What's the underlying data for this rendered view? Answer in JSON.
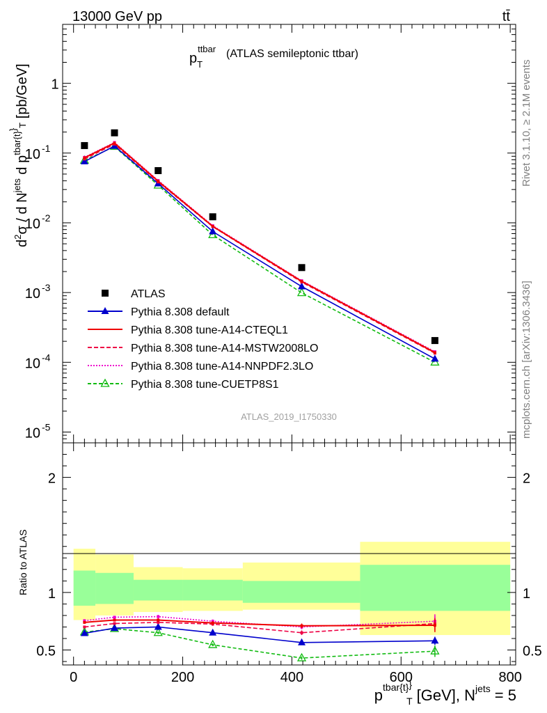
{
  "header": {
    "energy_label": "13000 GeV pp",
    "process_label": "tt̄"
  },
  "side_labels": {
    "rivet": "Rivet 3.1.10, ≥ 2.1M events",
    "mcplots": "mcplots.cern.ch [arXiv:1306.3436]"
  },
  "chart_data": {
    "type": "line",
    "title": "p_T^{ttbar} (ATLAS semileptonic ttbar)",
    "title_main": "p",
    "title_sub": "T",
    "title_sup": "ttbar",
    "title_rest": "(ATLAS semileptonic ttbar)",
    "analysis_id": "ATLAS_2019_I1750330",
    "xlabel": "p^{tbar{t}}_T [GeV], N^{jets} = 5",
    "x_unit_text": "[GeV], N",
    "x_sup_jets": "jets",
    "x_eq": "= 5",
    "ylabel": "d²σ / d N^{jets} d p^{tbar{t}}_T [pb/GeV]",
    "ratio_ylabel": "Ratio to ATLAS",
    "xlim": [
      -20,
      810
    ],
    "x_ticks": [
      0,
      200,
      400,
      600,
      800
    ],
    "x_tick_labels": [
      "0",
      "200",
      "400",
      "600",
      "800"
    ],
    "ylim": [
      7e-06,
      7.0
    ],
    "y_scale": "log",
    "y_tick_labels": [
      {
        "mant": "10",
        "exp": "-5",
        "value": 1e-05
      },
      {
        "mant": "10",
        "exp": "-4",
        "value": 0.0001
      },
      {
        "mant": "10",
        "exp": "-3",
        "value": 0.001
      },
      {
        "mant": "10",
        "exp": "-2",
        "value": 0.01
      },
      {
        "mant": "10",
        "exp": "-1",
        "value": 0.1
      },
      {
        "mant": "1",
        "exp": "",
        "value": 1
      }
    ],
    "ratio_ylim": [
      0.37,
      2.3
    ],
    "ratio_ticks": [
      0.5,
      1,
      2
    ],
    "ratio_tick_labels": [
      "0.5",
      "1",
      "2"
    ],
    "x": [
      20,
      75,
      155,
      255,
      418,
      662
    ],
    "bins": [
      [
        0,
        40
      ],
      [
        40,
        110
      ],
      [
        110,
        200
      ],
      [
        200,
        310
      ],
      [
        310,
        525
      ],
      [
        525,
        800
      ]
    ],
    "data": {
      "name": "ATLAS",
      "values": [
        0.128,
        0.195,
        0.056,
        0.0122,
        0.00228,
        0.000205
      ]
    },
    "band_inner": [
      [
        0.885,
        1.19
      ],
      [
        0.9,
        1.17
      ],
      [
        0.93,
        1.11
      ],
      [
        0.93,
        1.11
      ],
      [
        0.91,
        1.1
      ],
      [
        0.84,
        1.24
      ]
    ],
    "band_outer": [
      [
        0.76,
        1.38
      ],
      [
        0.8,
        1.33
      ],
      [
        0.83,
        1.22
      ],
      [
        0.84,
        1.21
      ],
      [
        0.85,
        1.26
      ],
      [
        0.63,
        1.44
      ]
    ],
    "series": [
      {
        "name": "Pythia 8.308 default",
        "color": "#0000cc",
        "dash": "",
        "marker": "triangle-filled",
        "values": [
          0.0755,
          0.126,
          0.0365,
          0.0075,
          0.00122,
          0.000112
        ],
        "ratio": [
          0.645,
          0.69,
          0.7,
          0.65,
          0.565,
          0.58
        ],
        "ratio_err": [
          0.01,
          0.01,
          0.012,
          0.012,
          0.018,
          0.035
        ]
      },
      {
        "name": "Pythia 8.308 tune-A14-CTEQL1",
        "color": "#ee0000",
        "dash": "",
        "marker": "none",
        "values": [
          0.0855,
          0.139,
          0.0395,
          0.0089,
          0.00145,
          0.000138
        ],
        "ratio": [
          0.74,
          0.76,
          0.76,
          0.735,
          0.71,
          0.715
        ],
        "ratio_err": [
          0.012,
          0.012,
          0.015,
          0.015,
          0.02,
          0.06
        ]
      },
      {
        "name": "Pythia 8.308 tune-A14-MSTW2008LO",
        "color": "#ee0044",
        "dash": "6,3",
        "marker": "none",
        "values": [
          0.082,
          0.134,
          0.0385,
          0.0088,
          0.00141,
          0.000135
        ],
        "ratio": [
          0.7,
          0.73,
          0.74,
          0.725,
          0.65,
          0.73
        ],
        "ratio_err": [
          0.012,
          0.012,
          0.015,
          0.015,
          0.02,
          0.06
        ]
      },
      {
        "name": "Pythia 8.308 tune-A14-NNPDF2.3LO",
        "color": "#ee00cc",
        "dash": "2,2",
        "marker": "none",
        "values": [
          0.087,
          0.142,
          0.0405,
          0.0091,
          0.00148,
          0.000142
        ],
        "ratio": [
          0.755,
          0.785,
          0.79,
          0.75,
          0.7,
          0.75
        ],
        "ratio_err": [
          0.012,
          0.012,
          0.015,
          0.015,
          0.02,
          0.06
        ]
      },
      {
        "name": "Pythia 8.308 tune-CUETP8S1",
        "color": "#11bb11",
        "dash": "5,3",
        "marker": "triangle-open",
        "values": [
          0.0785,
          0.124,
          0.0345,
          0.0067,
          0.00099,
          0.0001
        ],
        "ratio": [
          0.655,
          0.685,
          0.65,
          0.545,
          0.43,
          0.49
        ],
        "ratio_err": [
          0.01,
          0.01,
          0.012,
          0.012,
          0.015,
          0.05
        ]
      }
    ],
    "legend_position": "lower-left"
  }
}
